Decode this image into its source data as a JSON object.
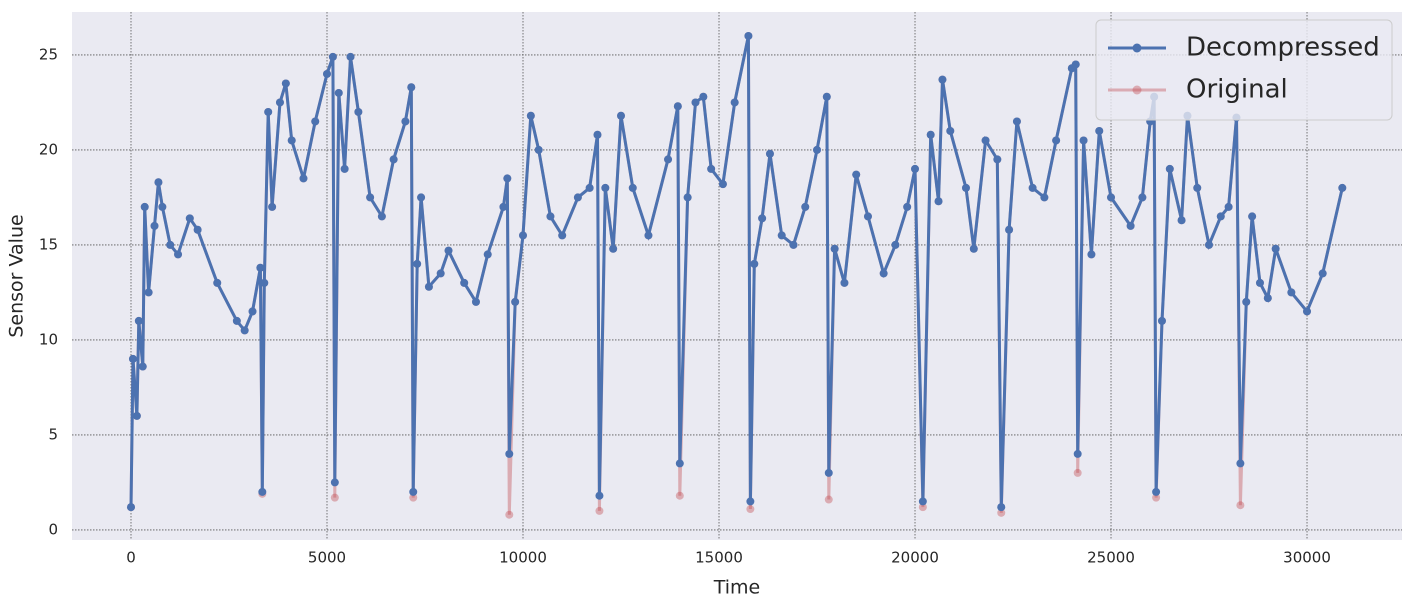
{
  "chart_data": {
    "type": "line",
    "xlabel": "Time",
    "ylabel": "Sensor Value",
    "x": [
      0,
      50,
      150,
      200,
      300,
      350,
      450,
      600,
      700,
      800,
      1000,
      1200,
      1500,
      1700,
      2200,
      2700,
      2900,
      3100,
      3300,
      3350,
      3400,
      3500,
      3600,
      3800,
      3950,
      4100,
      4400,
      4700,
      5000,
      5150,
      5200,
      5300,
      5450,
      5600,
      5800,
      6100,
      6400,
      6700,
      7000,
      7150,
      7200,
      7300,
      7400,
      7600,
      7900,
      8100,
      8500,
      8800,
      9100,
      9500,
      9600,
      9650,
      9800,
      10000,
      10200,
      10400,
      10700,
      11000,
      11400,
      11700,
      11900,
      11950,
      12100,
      12300,
      12500,
      12800,
      13200,
      13700,
      13950,
      14000,
      14200,
      14400,
      14600,
      14800,
      15100,
      15400,
      15750,
      15800,
      15900,
      16100,
      16300,
      16600,
      16900,
      17200,
      17500,
      17750,
      17800,
      17950,
      18200,
      18500,
      18800,
      19200,
      19500,
      19800,
      20000,
      20200,
      20400,
      20600,
      20700,
      20900,
      21300,
      21500,
      21800,
      22100,
      22200,
      22400,
      22600,
      23000,
      23300,
      23600,
      24000,
      24100,
      24150,
      24300,
      24500,
      24700,
      25000,
      25500,
      25800,
      26000,
      26100,
      26150,
      26300,
      26500,
      26800,
      26950,
      27200,
      27500,
      27800,
      28000,
      28200,
      28300,
      28450,
      28600,
      28800,
      29000,
      29200,
      29600,
      30000,
      30400,
      30900
    ],
    "series": [
      {
        "name": "Original",
        "color": "#c44e52",
        "values": [
          1.2,
          9,
          6,
          11,
          8.6,
          17,
          12.5,
          16,
          18.3,
          17,
          15,
          14.5,
          16.4,
          15.8,
          13,
          11,
          10.5,
          11.5,
          13.8,
          1.9,
          13,
          22,
          17,
          22.5,
          23.5,
          20.5,
          18.5,
          21.5,
          24,
          24.9,
          1.7,
          23,
          19,
          24.9,
          22,
          17.5,
          16.5,
          19.5,
          21.5,
          23.3,
          1.7,
          14,
          17.5,
          12.8,
          13.5,
          14.7,
          13,
          12,
          14.5,
          17,
          18.5,
          0.8,
          12,
          15.5,
          21.8,
          20,
          16.5,
          15.5,
          17.5,
          18,
          20.8,
          1.0,
          18,
          14.8,
          21.8,
          18,
          15.5,
          19.5,
          22.3,
          1.8,
          17.5,
          22.5,
          22.8,
          19,
          18.2,
          22.5,
          26,
          1.1,
          14,
          16.4,
          19.8,
          15.5,
          15,
          17,
          20,
          22.8,
          1.6,
          14.8,
          13,
          18.7,
          16.5,
          13.5,
          15,
          17,
          19,
          1.2,
          20.8,
          17.3,
          23.7,
          21,
          18,
          14.8,
          20.5,
          19.5,
          0.9,
          15.8,
          21.5,
          18,
          17.5,
          20.5,
          24.3,
          24.5,
          3.0,
          20.5,
          14.5,
          21,
          17.5,
          16,
          17.5,
          21.5,
          22.8,
          1.7,
          11,
          19,
          16.3,
          21.8,
          18,
          15,
          16.5,
          17,
          21.7,
          1.3,
          12,
          16.5,
          13,
          12.2,
          14.8,
          12.5,
          11.5,
          13.5,
          18
        ]
      },
      {
        "name": "Decompressed",
        "color": "#4c72b0",
        "values": [
          1.2,
          9,
          6,
          11,
          8.6,
          17,
          12.5,
          16,
          18.3,
          17,
          15,
          14.5,
          16.4,
          15.8,
          13,
          11,
          10.5,
          11.5,
          13.8,
          2,
          13,
          22,
          17,
          22.5,
          23.5,
          20.5,
          18.5,
          21.5,
          24,
          24.9,
          2.5,
          23,
          19,
          24.9,
          22,
          17.5,
          16.5,
          19.5,
          21.5,
          23.3,
          2,
          14,
          17.5,
          12.8,
          13.5,
          14.7,
          13,
          12,
          14.5,
          17,
          18.5,
          4,
          12,
          15.5,
          21.8,
          20,
          16.5,
          15.5,
          17.5,
          18,
          20.8,
          1.8,
          18,
          14.8,
          21.8,
          18,
          15.5,
          19.5,
          22.3,
          3.5,
          17.5,
          22.5,
          22.8,
          19,
          18.2,
          22.5,
          26,
          1.5,
          14,
          16.4,
          19.8,
          15.5,
          15,
          17,
          20,
          22.8,
          3,
          14.8,
          13,
          18.7,
          16.5,
          13.5,
          15,
          17,
          19,
          1.5,
          20.8,
          17.3,
          23.7,
          21,
          18,
          14.8,
          20.5,
          19.5,
          1.2,
          15.8,
          21.5,
          18,
          17.5,
          20.5,
          24.3,
          24.5,
          4,
          20.5,
          14.5,
          21,
          17.5,
          16,
          17.5,
          21.5,
          22.8,
          2,
          11,
          19,
          16.3,
          21.8,
          18,
          15,
          16.5,
          17,
          21.7,
          3.5,
          12,
          16.5,
          13,
          12.2,
          14.8,
          12.5,
          11.5,
          13.5,
          18
        ]
      }
    ],
    "xlim": [
      -1505,
      32423
    ],
    "xticks": [
      0,
      5000,
      10000,
      15000,
      20000,
      25000,
      30000
    ],
    "ylim": [
      -0.53,
      27.26
    ],
    "yticks": [
      0,
      5,
      10,
      15,
      20,
      25
    ],
    "grid": true,
    "legend": "upper right"
  }
}
